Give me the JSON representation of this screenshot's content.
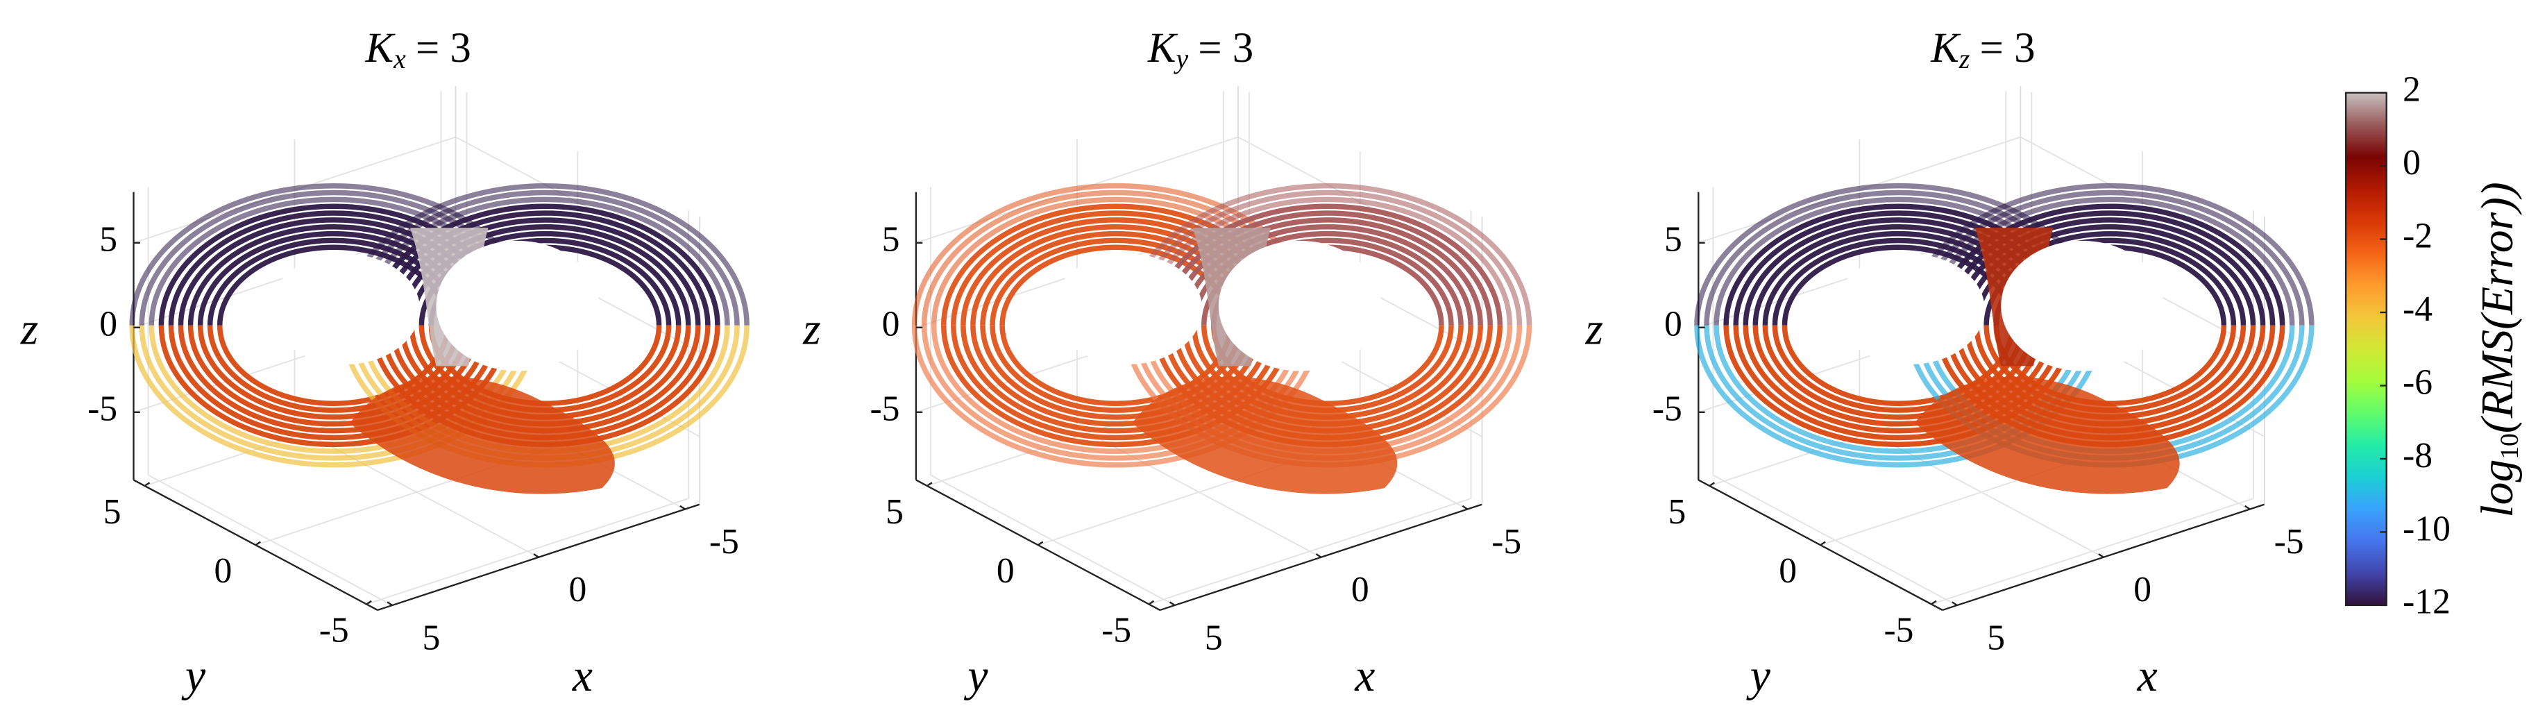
{
  "chart_data": [
    {
      "type": "scatter3d",
      "title": {
        "symbol": "K",
        "subscript": "x",
        "text": "= 3"
      },
      "xlabel": "x",
      "ylabel": "y",
      "zlabel": "z",
      "xlim": [
        -5.5,
        5.5
      ],
      "ylim": [
        -5.5,
        5.5
      ],
      "zlim": [
        -9,
        8
      ],
      "xticks": [
        -5,
        0,
        5
      ],
      "yticks": [
        -5,
        0,
        5
      ],
      "zticks": [
        -5,
        0,
        5
      ],
      "grid": true,
      "colors": {
        "left_upper": "#2e1a47",
        "right_upper": "#2e1a47",
        "lower": "#d9480f",
        "seam": "#c9bfc1",
        "outer": "#f0c040"
      }
    },
    {
      "type": "scatter3d",
      "title": {
        "symbol": "K",
        "subscript": "y",
        "text": "= 3"
      },
      "xlabel": "x",
      "ylabel": "y",
      "zlabel": "z",
      "xlim": [
        -5.5,
        5.5
      ],
      "ylim": [
        -5.5,
        5.5
      ],
      "zlim": [
        -9,
        8
      ],
      "xticks": [
        -5,
        0,
        5
      ],
      "yticks": [
        -5,
        0,
        5
      ],
      "zticks": [
        -5,
        0,
        5
      ],
      "grid": true,
      "colors": {
        "left_upper": "#e0541a",
        "right_upper": "#a85a5a",
        "lower": "#e0541a",
        "seam": "#b89a9a",
        "outer": "#f08050"
      }
    },
    {
      "type": "scatter3d",
      "title": {
        "symbol": "K",
        "subscript": "z",
        "text": "= 3"
      },
      "xlabel": "x",
      "ylabel": "y",
      "zlabel": "z",
      "xlim": [
        -5.5,
        5.5
      ],
      "ylim": [
        -5.5,
        5.5
      ],
      "zlim": [
        -9,
        8
      ],
      "xticks": [
        -5,
        0,
        5
      ],
      "yticks": [
        -5,
        0,
        5
      ],
      "zticks": [
        -5,
        0,
        5
      ],
      "grid": true,
      "colors": {
        "left_upper": "#2e1a47",
        "right_upper": "#2e1a47",
        "lower": "#d9480f",
        "seam": "#b83010",
        "outer": "#30b0e0"
      }
    }
  ],
  "colorbar": {
    "label": {
      "text": "log",
      "subscript": "10",
      "rest": "(RMS(Error))"
    },
    "lim": [
      -12,
      2
    ],
    "ticks": [
      -12,
      -10,
      -8,
      -6,
      -4,
      -2,
      0,
      2
    ],
    "colormap": [
      "#30123b",
      "#4145ab",
      "#4675ed",
      "#39a2fc",
      "#1bcfd4",
      "#24eca6",
      "#61fc6c",
      "#a4fc3b",
      "#d1e834",
      "#f3c63a",
      "#fe9b2d",
      "#f36315",
      "#d93806",
      "#b11901",
      "#7a0402",
      "#9a5a5a",
      "#c8c0c0"
    ]
  }
}
